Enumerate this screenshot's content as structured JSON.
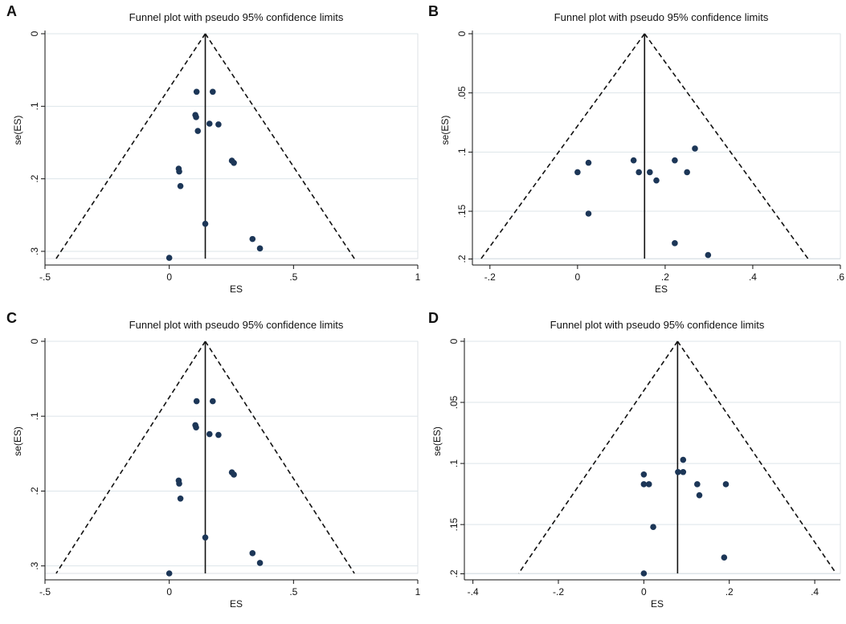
{
  "colors": {
    "point": "#1c3657",
    "grid": "#dde5ea",
    "line": "#111111"
  },
  "chart_data": [
    {
      "panel": "A",
      "type": "scatter",
      "title": "Funnel plot with pseudo 95% confidence limits",
      "xlabel": "ES",
      "ylabel": "se(ES)",
      "xlim": [
        -0.5,
        1.0
      ],
      "ylim": [
        0,
        0.31
      ],
      "x_ticks": [
        -0.5,
        0,
        0.5,
        1
      ],
      "x_tick_labels": [
        "-.5",
        "0",
        ".5",
        "1"
      ],
      "y_ticks": [
        0,
        0.1,
        0.2,
        0.3
      ],
      "y_tick_labels": [
        "0",
        ".1",
        ".2",
        ".3"
      ],
      "y_reversed": true,
      "pooled_effect": 0.145,
      "funnel": {
        "apex": [
          0.145,
          0
        ],
        "left_base": [
          -0.455,
          0.31
        ],
        "right_base": [
          0.745,
          0.31
        ]
      },
      "points": [
        {
          "x": 0.11,
          "y": 0.08
        },
        {
          "x": 0.175,
          "y": 0.08
        },
        {
          "x": 0.105,
          "y": 0.112
        },
        {
          "x": 0.108,
          "y": 0.115
        },
        {
          "x": 0.162,
          "y": 0.124
        },
        {
          "x": 0.198,
          "y": 0.125
        },
        {
          "x": 0.115,
          "y": 0.134
        },
        {
          "x": 0.252,
          "y": 0.175
        },
        {
          "x": 0.26,
          "y": 0.178
        },
        {
          "x": 0.038,
          "y": 0.186
        },
        {
          "x": 0.04,
          "y": 0.19
        },
        {
          "x": 0.045,
          "y": 0.21
        },
        {
          "x": 0.145,
          "y": 0.262
        },
        {
          "x": 0.335,
          "y": 0.283
        },
        {
          "x": 0.365,
          "y": 0.296
        },
        {
          "x": 0.0,
          "y": 0.309
        }
      ]
    },
    {
      "panel": "B",
      "type": "scatter",
      "title": "Funnel plot with pseudo 95% confidence limits",
      "xlabel": "ES",
      "ylabel": "se(ES)",
      "xlim": [
        -0.24,
        0.6
      ],
      "ylim": [
        0,
        0.19
      ],
      "x_ticks": [
        -0.2,
        0,
        0.2,
        0.4,
        0.6
      ],
      "x_tick_labels": [
        "-.2",
        "0",
        ".2",
        ".4",
        ".6"
      ],
      "y_ticks": [
        0,
        0.05,
        0.1,
        0.15,
        0.2
      ],
      "y_tick_labels": [
        "0",
        ".05",
        ".1",
        ".15",
        ".2"
      ],
      "y_reversed": true,
      "pooled_effect": 0.153,
      "funnel": {
        "apex": [
          0.153,
          0
        ],
        "left_base": [
          -0.22,
          0.19
        ],
        "right_base": [
          0.526,
          0.19
        ]
      },
      "points": [
        {
          "x": 0.268,
          "y": 0.097
        },
        {
          "x": 0.128,
          "y": 0.107
        },
        {
          "x": 0.222,
          "y": 0.107
        },
        {
          "x": 0.025,
          "y": 0.109
        },
        {
          "x": 0.0,
          "y": 0.117
        },
        {
          "x": 0.14,
          "y": 0.117
        },
        {
          "x": 0.165,
          "y": 0.117
        },
        {
          "x": 0.25,
          "y": 0.117
        },
        {
          "x": 0.18,
          "y": 0.124
        },
        {
          "x": 0.025,
          "y": 0.152
        },
        {
          "x": 0.222,
          "y": 0.177
        },
        {
          "x": 0.298,
          "y": 0.187
        }
      ]
    },
    {
      "panel": "C",
      "type": "scatter",
      "title": "Funnel plot with pseudo 95% confidence limits",
      "xlabel": "ES",
      "ylabel": "se(ES)",
      "xlim": [
        -0.5,
        1.0
      ],
      "ylim": [
        0,
        0.31
      ],
      "x_ticks": [
        -0.5,
        0,
        0.5,
        1
      ],
      "x_tick_labels": [
        "-.5",
        "0",
        ".5",
        "1"
      ],
      "y_ticks": [
        0,
        0.1,
        0.2,
        0.3
      ],
      "y_tick_labels": [
        "0",
        ".1",
        ".2",
        ".3"
      ],
      "y_reversed": true,
      "pooled_effect": 0.145,
      "funnel": {
        "apex": [
          0.145,
          0
        ],
        "left_base": [
          -0.455,
          0.31
        ],
        "right_base": [
          0.745,
          0.31
        ]
      },
      "points": [
        {
          "x": 0.11,
          "y": 0.08
        },
        {
          "x": 0.175,
          "y": 0.08
        },
        {
          "x": 0.105,
          "y": 0.112
        },
        {
          "x": 0.108,
          "y": 0.115
        },
        {
          "x": 0.162,
          "y": 0.124
        },
        {
          "x": 0.198,
          "y": 0.125
        },
        {
          "x": 0.252,
          "y": 0.175
        },
        {
          "x": 0.26,
          "y": 0.178
        },
        {
          "x": 0.038,
          "y": 0.186
        },
        {
          "x": 0.04,
          "y": 0.19
        },
        {
          "x": 0.045,
          "y": 0.21
        },
        {
          "x": 0.145,
          "y": 0.262
        },
        {
          "x": 0.335,
          "y": 0.283
        },
        {
          "x": 0.365,
          "y": 0.296
        },
        {
          "x": 0.0,
          "y": 0.31
        }
      ]
    },
    {
      "panel": "D",
      "type": "scatter",
      "title": "Funnel plot with pseudo 95% confidence limits",
      "xlabel": "ES",
      "ylabel": "se(ES)",
      "xlim": [
        -0.42,
        0.46
      ],
      "ylim": [
        0,
        0.19
      ],
      "x_ticks": [
        -0.4,
        -0.2,
        0,
        0.2,
        0.4
      ],
      "x_tick_labels": [
        "-.4",
        "-.2",
        "0",
        ".2",
        ".4"
      ],
      "y_ticks": [
        0,
        0.05,
        0.1,
        0.15,
        0.2
      ],
      "y_tick_labels": [
        "0",
        ".05",
        ".1",
        ".15",
        ".2"
      ],
      "y_reversed": true,
      "pooled_effect": 0.079,
      "funnel": {
        "apex": [
          0.079,
          0
        ],
        "left_base": [
          -0.293,
          0.19
        ],
        "right_base": [
          0.45,
          0.19
        ]
      },
      "points": [
        {
          "x": 0.092,
          "y": 0.097
        },
        {
          "x": 0.08,
          "y": 0.107
        },
        {
          "x": 0.092,
          "y": 0.107
        },
        {
          "x": 0.0,
          "y": 0.109
        },
        {
          "x": 0.0,
          "y": 0.117
        },
        {
          "x": 0.012,
          "y": 0.117
        },
        {
          "x": 0.125,
          "y": 0.117
        },
        {
          "x": 0.192,
          "y": 0.117
        },
        {
          "x": 0.13,
          "y": 0.126
        },
        {
          "x": 0.022,
          "y": 0.152
        },
        {
          "x": 0.188,
          "y": 0.177
        },
        {
          "x": 0.0,
          "y": 0.19
        }
      ]
    }
  ]
}
